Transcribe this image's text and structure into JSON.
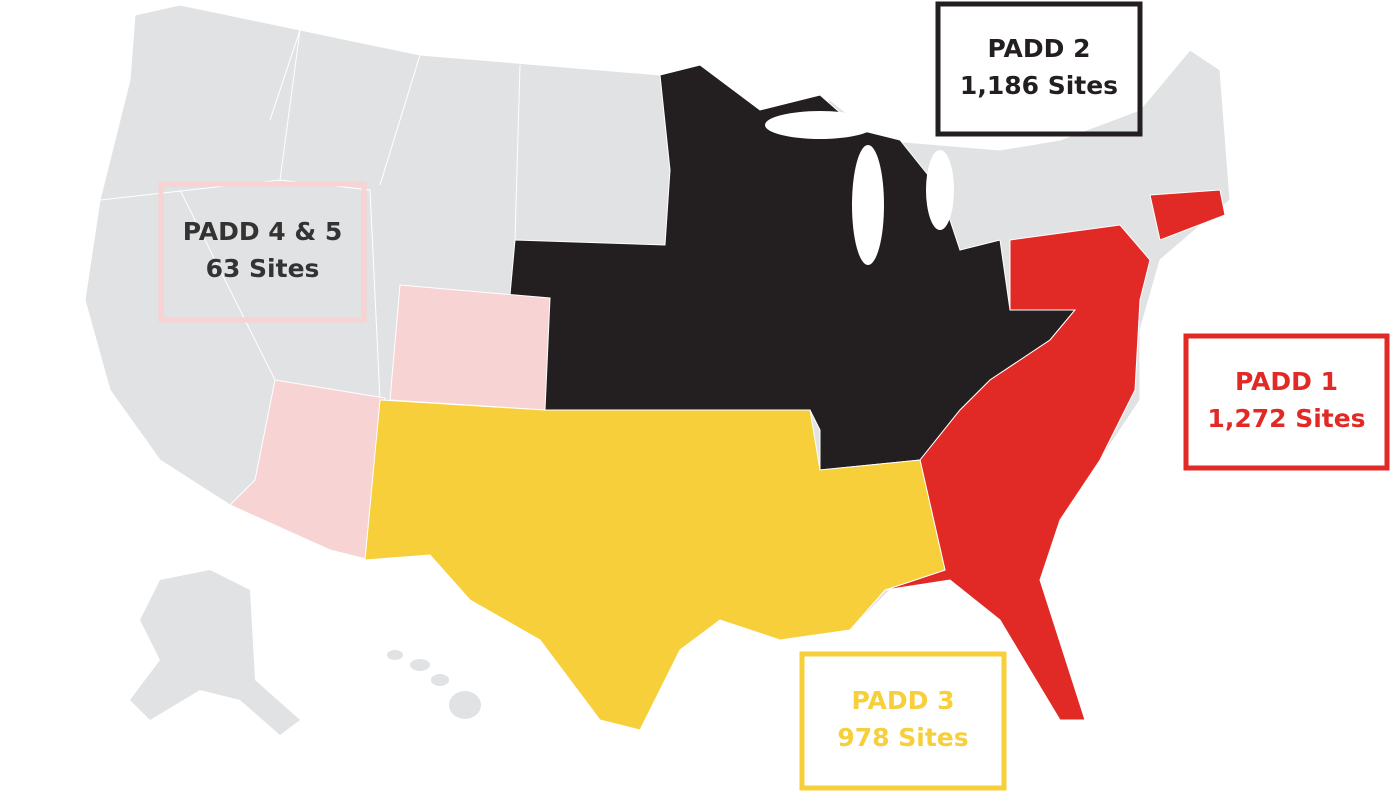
{
  "regions": [
    {
      "name": "PADD 2",
      "sites": "1,186 Sites",
      "color": "#231f20",
      "label_color": "#231f20"
    },
    {
      "name": "PADD 4 & 5",
      "sites": "63 Sites",
      "color": "#f8d3d3",
      "label_color": "#333333"
    },
    {
      "name": "PADD 1",
      "sites": "1,272 Sites",
      "color": "#e12a26",
      "label_color": "#e12a26"
    },
    {
      "name": "PADD 3",
      "sites": "978 Sites",
      "color": "#f6cf3a",
      "label_color": "#f6cf3a"
    }
  ]
}
